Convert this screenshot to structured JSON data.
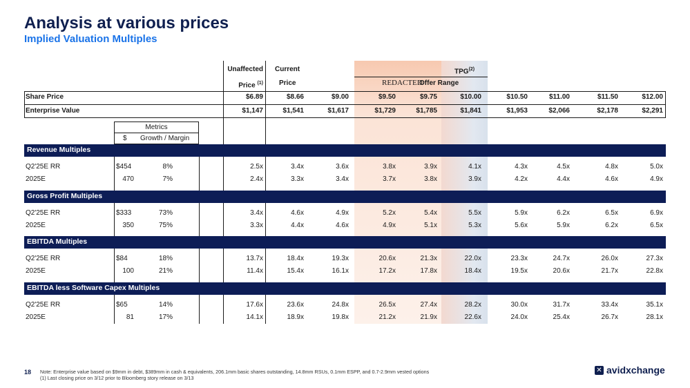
{
  "title": "Analysis at various prices",
  "subtitle": "Implied Valuation Multiples",
  "header": {
    "unaffected_label": "Unaffected",
    "unaffected_price_label": "Price",
    "unaffected_sup": "(1)",
    "current_label": "Current",
    "current_price_label": "Price",
    "tpg_label": "TPG",
    "tpg_sup": "(2)",
    "redacted_label": "REDACTED",
    "offer_range_label": "Offer Range"
  },
  "share_price": {
    "label": "Share Price",
    "values": [
      "$6.89",
      "$8.66",
      "$9.00",
      "$9.50",
      "$9.75",
      "$10.00",
      "$10.50",
      "$11.00",
      "$11.50",
      "$12.00"
    ]
  },
  "enterprise_value": {
    "label": "Enterprise Value",
    "values": [
      "$1,147",
      "$1,541",
      "$1,617",
      "$1,729",
      "$1,785",
      "$1,841",
      "$1,953",
      "$2,066",
      "$2,178",
      "$2,291"
    ]
  },
  "metrics_box": {
    "title": "Metrics",
    "col_dollar": "$",
    "col_growth": "Growth / Margin"
  },
  "sections": [
    {
      "title": "Revenue Multiples",
      "rows": [
        {
          "label": "Q2'25E RR",
          "metric": "$454",
          "growth": "8%",
          "values": [
            "2.5x",
            "3.4x",
            "3.6x",
            "3.8x",
            "3.9x",
            "4.1x",
            "4.3x",
            "4.5x",
            "4.8x",
            "5.0x"
          ]
        },
        {
          "label": "2025E",
          "metric": "470",
          "growth": "7%",
          "values": [
            "2.4x",
            "3.3x",
            "3.4x",
            "3.7x",
            "3.8x",
            "3.9x",
            "4.2x",
            "4.4x",
            "4.6x",
            "4.9x"
          ]
        }
      ]
    },
    {
      "title": "Gross Profit Multiples",
      "rows": [
        {
          "label": "Q2'25E RR",
          "metric": "$333",
          "growth": "73%",
          "values": [
            "3.4x",
            "4.6x",
            "4.9x",
            "5.2x",
            "5.4x",
            "5.5x",
            "5.9x",
            "6.2x",
            "6.5x",
            "6.9x"
          ]
        },
        {
          "label": "2025E",
          "metric": "350",
          "growth": "75%",
          "values": [
            "3.3x",
            "4.4x",
            "4.6x",
            "4.9x",
            "5.1x",
            "5.3x",
            "5.6x",
            "5.9x",
            "6.2x",
            "6.5x"
          ]
        }
      ]
    },
    {
      "title": "EBITDA Multiples",
      "rows": [
        {
          "label": "Q2'25E RR",
          "metric": "$84",
          "growth": "18%",
          "values": [
            "13.7x",
            "18.4x",
            "19.3x",
            "20.6x",
            "21.3x",
            "22.0x",
            "23.3x",
            "24.7x",
            "26.0x",
            "27.3x"
          ]
        },
        {
          "label": "2025E",
          "metric": "100",
          "growth": "21%",
          "values": [
            "11.4x",
            "15.4x",
            "16.1x",
            "17.2x",
            "17.8x",
            "18.4x",
            "19.5x",
            "20.6x",
            "21.7x",
            "22.8x"
          ]
        }
      ]
    },
    {
      "title": "EBITDA less Software Capex Multiples",
      "rows": [
        {
          "label": "Q2'25E RR",
          "metric": "$65",
          "growth": "14%",
          "values": [
            "17.6x",
            "23.6x",
            "24.8x",
            "26.5x",
            "27.4x",
            "28.2x",
            "30.0x",
            "31.7x",
            "33.4x",
            "35.1x"
          ]
        },
        {
          "label": "2025E",
          "metric": "81",
          "growth": "17%",
          "values": [
            "14.1x",
            "18.9x",
            "19.8x",
            "21.2x",
            "21.9x",
            "22.6x",
            "24.0x",
            "25.4x",
            "26.7x",
            "28.1x"
          ]
        }
      ]
    }
  ],
  "footer": {
    "page_number": "18",
    "note": "Note: Enterprise value based on $9mm in debt, $389mm in cash & equivalents, 206.1mm basic shares outstanding, 14.8mm RSUs, 0.1mm ESPP, and 0.7-2.9mm vested options",
    "note1": "(1)     Last closing price on 3/12 prior to Bloomberg story release on 3/13",
    "logo_text": "avidxchange",
    "logo_mark": "✕"
  },
  "colors": {
    "navy": "#0d1d56",
    "accent": "#1a73e8",
    "offer_shade": "#fbe3d6",
    "tpg_shade": "#dce4ee"
  }
}
